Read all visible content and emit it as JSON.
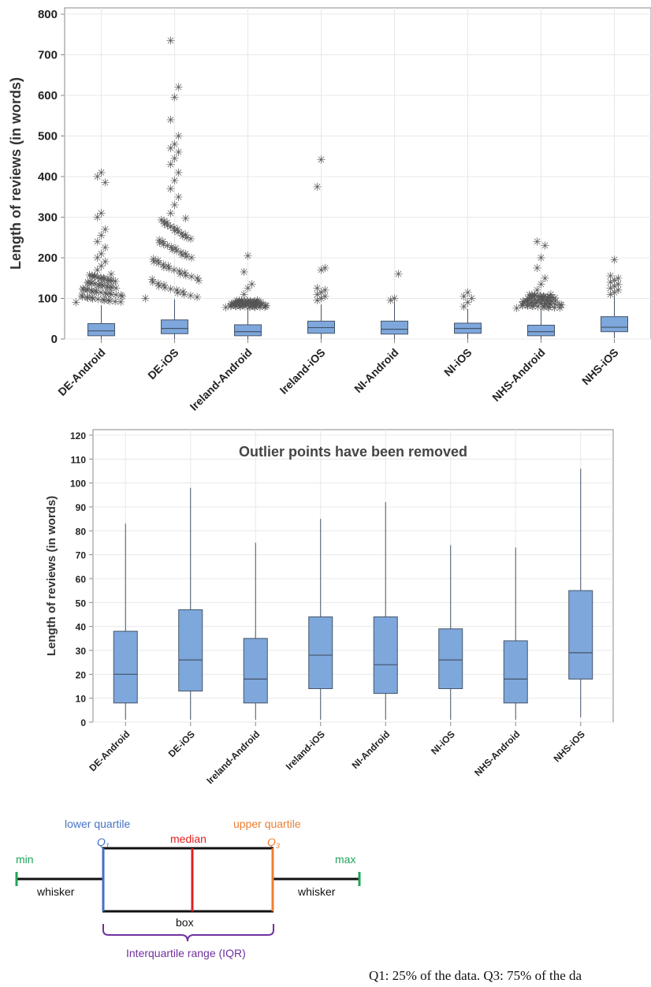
{
  "chart_data": [
    {
      "type": "boxplot",
      "ylabel": "Length of reviews (in words)",
      "ylim": [
        0,
        800
      ],
      "yticks": [
        0,
        100,
        200,
        300,
        400,
        500,
        600,
        700,
        800
      ],
      "grid": true,
      "categories": [
        "DE-Android",
        "DE-iOS",
        "Ireland-Android",
        "Ireland-iOS",
        "NI-Android",
        "NI-iOS",
        "NHS-Android",
        "NHS-iOS"
      ],
      "boxes": [
        {
          "q1": 8,
          "median": 20,
          "q3": 38,
          "whisker_low": 0,
          "whisker_high": 83,
          "outlier_from": 90,
          "outlier_to": 160,
          "outliers": [
            170,
            180,
            190,
            200,
            210,
            225,
            240,
            255,
            270,
            300,
            310,
            385,
            400,
            410
          ]
        },
        {
          "q1": 13,
          "median": 26,
          "q3": 47,
          "whisker_low": 0,
          "whisker_high": 98,
          "outlier_from": 100,
          "outlier_to": 300,
          "outliers": [
            310,
            330,
            350,
            370,
            390,
            410,
            430,
            445,
            460,
            470,
            480,
            500,
            540,
            595,
            620,
            735
          ]
        },
        {
          "q1": 8,
          "median": 18,
          "q3": 35,
          "whisker_low": 0,
          "whisker_high": 75,
          "outlier_from": 78,
          "outlier_to": 95,
          "outliers": [
            110,
            125,
            135,
            165,
            205
          ]
        },
        {
          "q1": 14,
          "median": 28,
          "q3": 44,
          "whisker_low": 0,
          "whisker_high": 85,
          "outlier_from": 0,
          "outlier_to": 0,
          "outliers": [
            95,
            100,
            105,
            110,
            115,
            120,
            125,
            170,
            175,
            375,
            442
          ]
        },
        {
          "q1": 12,
          "median": 24,
          "q3": 44,
          "whisker_low": 0,
          "whisker_high": 92,
          "outlier_from": 0,
          "outlier_to": 0,
          "outliers": [
            95,
            100,
            160
          ]
        },
        {
          "q1": 14,
          "median": 26,
          "q3": 39,
          "whisker_low": 0,
          "whisker_high": 74,
          "outlier_from": 0,
          "outlier_to": 0,
          "outliers": [
            80,
            90,
            100,
            105,
            115
          ]
        },
        {
          "q1": 8,
          "median": 18,
          "q3": 34,
          "whisker_low": 0,
          "whisker_high": 73,
          "outlier_from": 76,
          "outlier_to": 110,
          "outliers": [
            120,
            135,
            150,
            175,
            200,
            230,
            240
          ]
        },
        {
          "q1": 18,
          "median": 29,
          "q3": 55,
          "whisker_low": 2,
          "whisker_high": 106,
          "outlier_from": 0,
          "outlier_to": 0,
          "outliers": [
            110,
            115,
            120,
            125,
            130,
            135,
            140,
            145,
            150,
            155,
            195
          ]
        }
      ]
    },
    {
      "type": "boxplot",
      "title": "Outlier points have been removed",
      "ylabel": "Length of reviews (in words)",
      "ylim": [
        0,
        120
      ],
      "yticks": [
        0,
        10,
        20,
        30,
        40,
        50,
        60,
        70,
        80,
        90,
        100,
        110,
        120
      ],
      "grid": true,
      "categories": [
        "DE-Android",
        "DE-iOS",
        "Ireland-Android",
        "Ireland-iOS",
        "NI-Android",
        "NI-iOS",
        "NHS-Android",
        "NHS-iOS"
      ],
      "boxes": [
        {
          "q1": 8,
          "median": 20,
          "q3": 38,
          "whisker_low": 1,
          "whisker_high": 83
        },
        {
          "q1": 13,
          "median": 26,
          "q3": 47,
          "whisker_low": 1,
          "whisker_high": 98
        },
        {
          "q1": 8,
          "median": 18,
          "q3": 35,
          "whisker_low": 1,
          "whisker_high": 75
        },
        {
          "q1": 14,
          "median": 28,
          "q3": 44,
          "whisker_low": 1,
          "whisker_high": 85
        },
        {
          "q1": 12,
          "median": 24,
          "q3": 44,
          "whisker_low": 1,
          "whisker_high": 92
        },
        {
          "q1": 14,
          "median": 26,
          "q3": 39,
          "whisker_low": 1,
          "whisker_high": 74
        },
        {
          "q1": 8,
          "median": 18,
          "q3": 34,
          "whisker_low": 1,
          "whisker_high": 73
        },
        {
          "q1": 18,
          "median": 29,
          "q3": 55,
          "whisker_low": 2,
          "whisker_high": 106
        }
      ]
    }
  ],
  "colors": {
    "box_fill": "#7ea7dc",
    "box_stroke": "#44546a",
    "grid": "#e8e8e8",
    "axis": "#888888",
    "outlier": "#555555",
    "q1_color": "#4472c4",
    "median_color": "#e02020",
    "q3_color": "#ed7d31",
    "minmax_color": "#1fa65a",
    "iqr_color": "#7030a0"
  },
  "outlier_marker": "✳",
  "legend": {
    "lower_quartile": "lower quartile",
    "q1": "Q",
    "q1_sub": "1",
    "median": "median",
    "upper_quartile": "upper quartile",
    "q3": "Q",
    "q3_sub": "3",
    "min": "min",
    "max": "max",
    "whisker_left": "whisker",
    "whisker_right": "whisker",
    "box": "box",
    "iqr": "Interquartile range (IQR)"
  },
  "caption": "Q1: 25% of the data. Q3: 75% of the da"
}
